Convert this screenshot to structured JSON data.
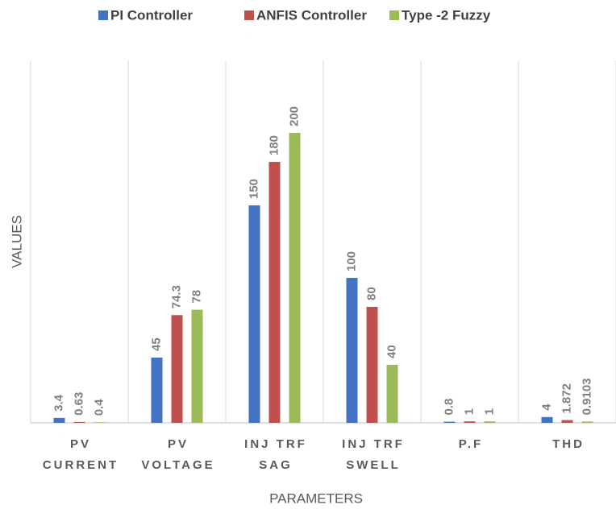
{
  "chart_data": {
    "type": "bar",
    "categories": [
      [
        "PV",
        "CURRENT"
      ],
      [
        "PV",
        "VOLTAGE"
      ],
      [
        "INJ TRF",
        "SAG"
      ],
      [
        "INJ TRF",
        "SWELL"
      ],
      [
        "P.F"
      ],
      [
        "THD"
      ]
    ],
    "series": [
      {
        "name": "PI Controller",
        "color": "#4472c4",
        "values": [
          3.4,
          45,
          150,
          100,
          0.8,
          4
        ]
      },
      {
        "name": "ANFIS Controller",
        "color": "#c0504d",
        "values": [
          0.63,
          74.3,
          180,
          80,
          1,
          1.872
        ]
      },
      {
        "name": "Type -2 Fuzzy",
        "color": "#9bbb59",
        "values": [
          0.4,
          78,
          200,
          40,
          1,
          0.9103
        ]
      }
    ],
    "ylim": [
      0,
      250
    ],
    "ylabel": "VALUES",
    "xlabel": "PARAMETERS",
    "legend": "top"
  }
}
